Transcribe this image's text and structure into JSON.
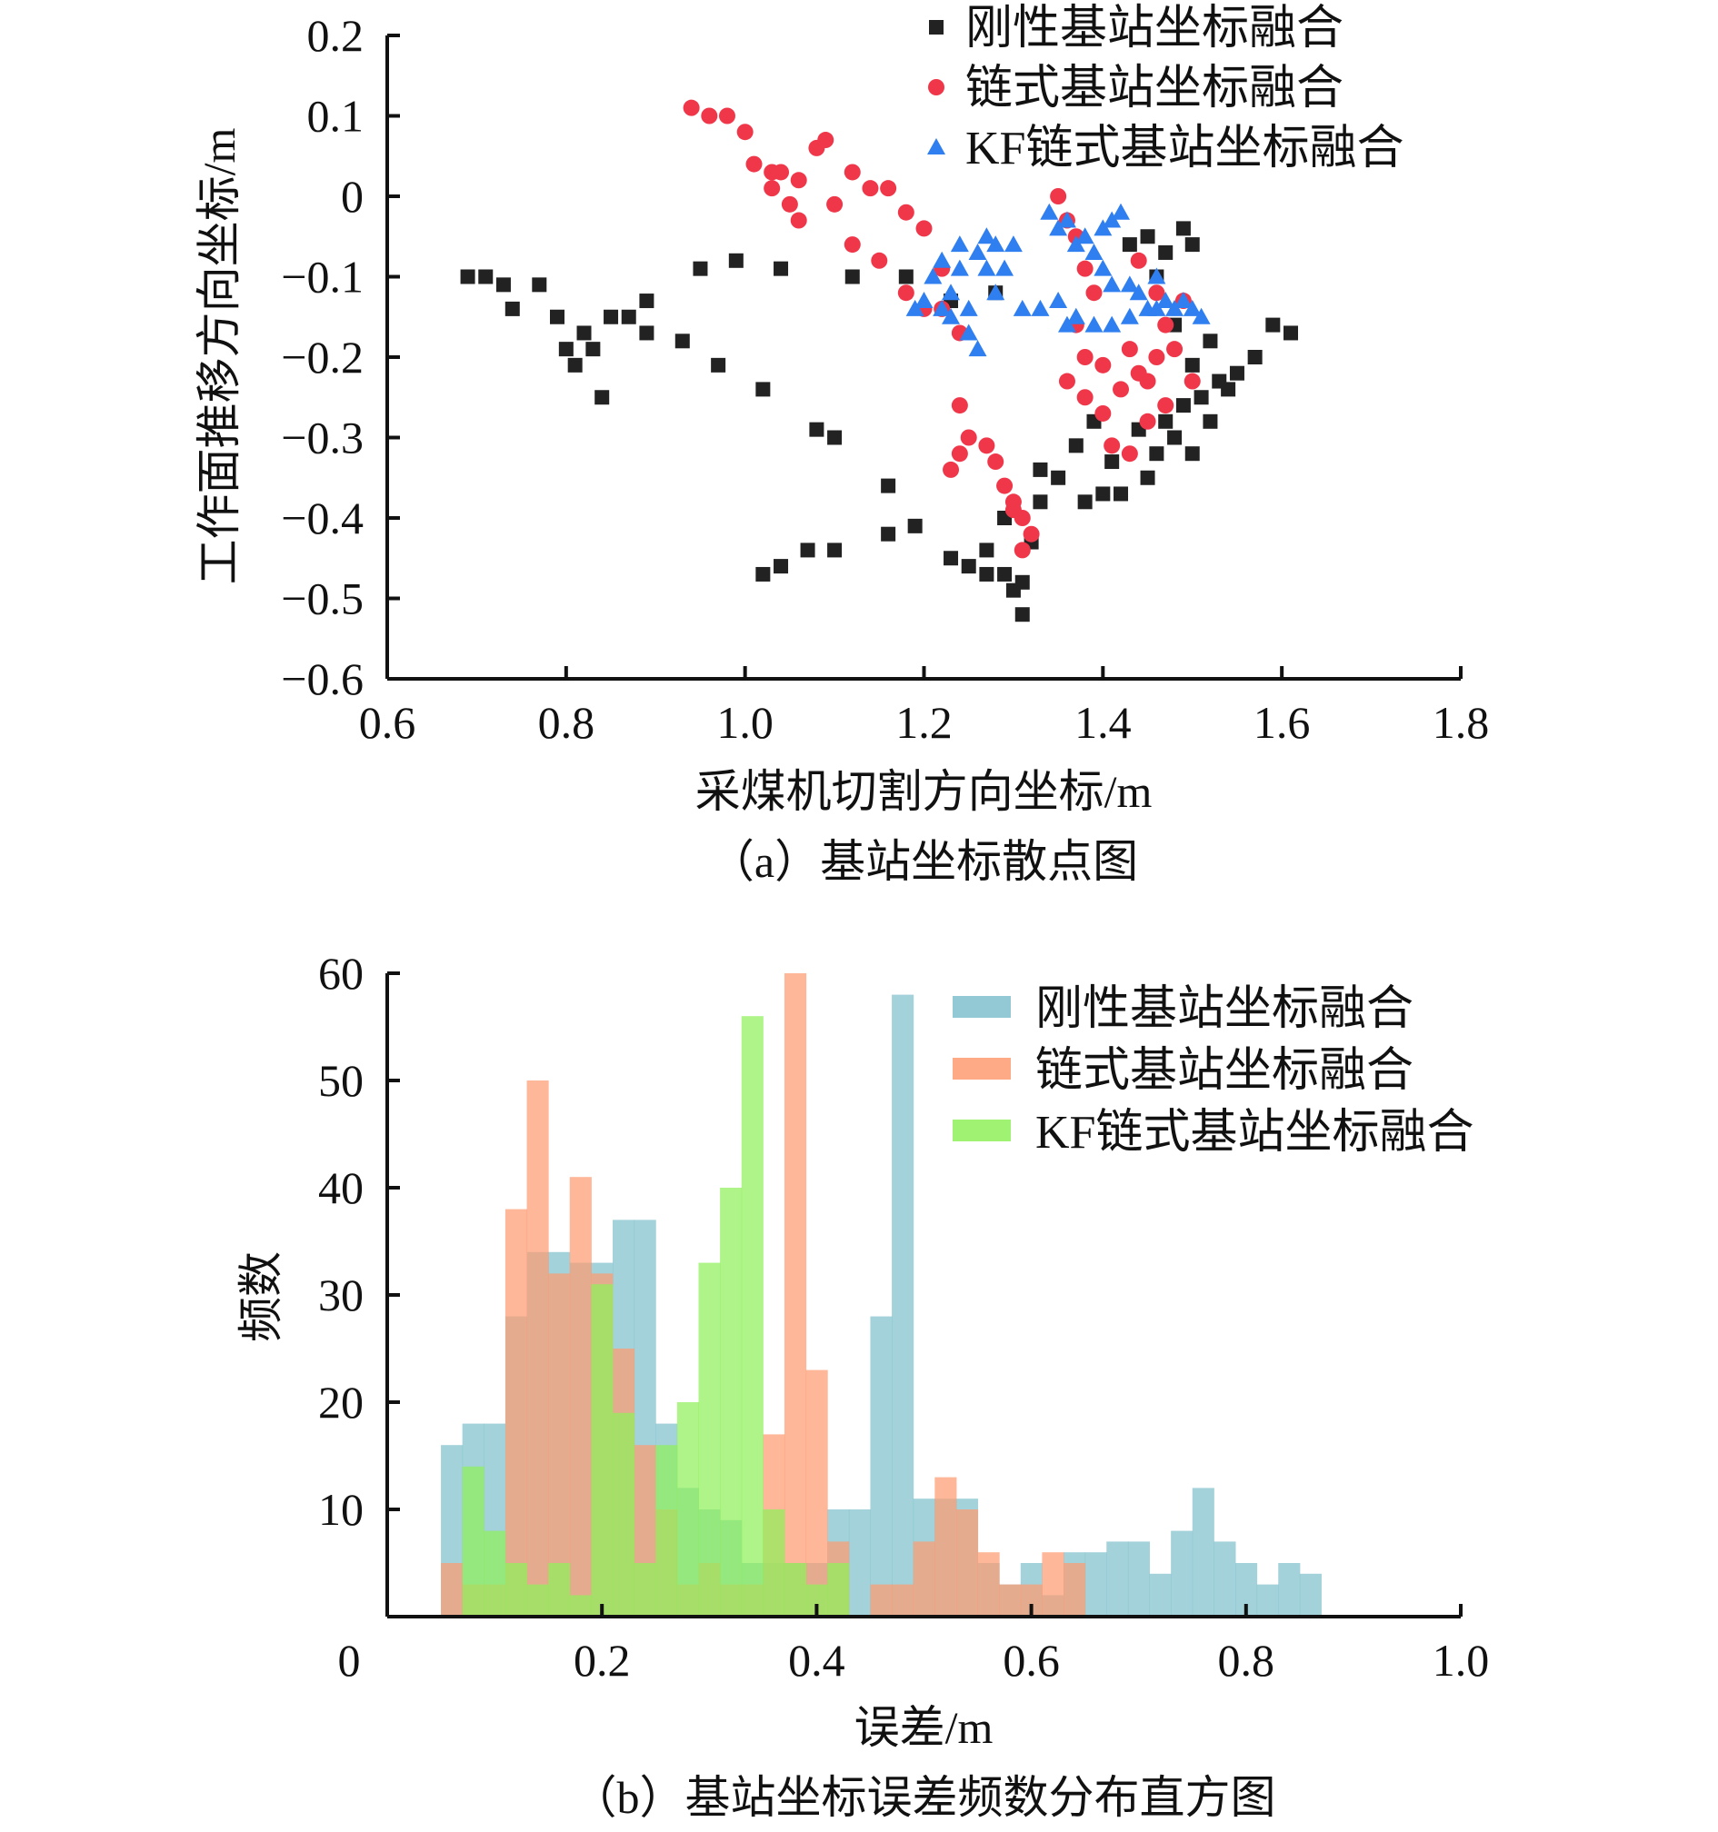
{
  "chart_data": [
    {
      "type": "scatter",
      "caption": "（a）基站坐标散点图",
      "xlabel": "采煤机切割方向坐标/m",
      "ylabel": "工作面推移方向坐标/m",
      "xlim": [
        0.6,
        1.8
      ],
      "ylim": [
        -0.6,
        0.2
      ],
      "xticks": [
        "0.6",
        "0.8",
        "1.0",
        "1.2",
        "1.4",
        "1.6",
        "1.8"
      ],
      "yticks": [
        "0.2",
        "0.1",
        "0",
        "−0.1",
        "−0.2",
        "−0.3",
        "−0.4",
        "−0.5",
        "−0.6"
      ],
      "legend_position": "top-right",
      "series": [
        {
          "name": "刚性基站坐标融合",
          "marker": "square",
          "color": "#222222",
          "points": [
            [
              0.69,
              -0.1
            ],
            [
              0.71,
              -0.1
            ],
            [
              0.73,
              -0.11
            ],
            [
              0.74,
              -0.14
            ],
            [
              0.77,
              -0.11
            ],
            [
              0.79,
              -0.15
            ],
            [
              0.8,
              -0.19
            ],
            [
              0.81,
              -0.21
            ],
            [
              0.82,
              -0.17
            ],
            [
              0.83,
              -0.19
            ],
            [
              0.84,
              -0.25
            ],
            [
              0.85,
              -0.15
            ],
            [
              0.87,
              -0.15
            ],
            [
              0.89,
              -0.13
            ],
            [
              0.89,
              -0.17
            ],
            [
              0.93,
              -0.18
            ],
            [
              0.95,
              -0.09
            ],
            [
              0.97,
              -0.21
            ],
            [
              0.99,
              -0.08
            ],
            [
              1.02,
              -0.24
            ],
            [
              1.04,
              -0.09
            ],
            [
              1.08,
              -0.29
            ],
            [
              1.1,
              -0.3
            ],
            [
              1.12,
              -0.1
            ],
            [
              1.16,
              -0.36
            ],
            [
              1.16,
              -0.42
            ],
            [
              1.18,
              -0.1
            ],
            [
              1.19,
              -0.41
            ],
            [
              1.02,
              -0.47
            ],
            [
              1.04,
              -0.46
            ],
            [
              1.07,
              -0.44
            ],
            [
              1.1,
              -0.44
            ],
            [
              1.23,
              -0.45
            ],
            [
              1.25,
              -0.46
            ],
            [
              1.27,
              -0.47
            ],
            [
              1.29,
              -0.47
            ],
            [
              1.3,
              -0.49
            ],
            [
              1.31,
              -0.52
            ],
            [
              1.31,
              -0.48
            ],
            [
              1.33,
              -0.38
            ],
            [
              1.35,
              -0.35
            ],
            [
              1.37,
              -0.31
            ],
            [
              1.39,
              -0.28
            ],
            [
              1.41,
              -0.33
            ],
            [
              1.42,
              -0.37
            ],
            [
              1.45,
              -0.35
            ],
            [
              1.46,
              -0.32
            ],
            [
              1.48,
              -0.3
            ],
            [
              1.49,
              -0.26
            ],
            [
              1.51,
              -0.25
            ],
            [
              1.53,
              -0.23
            ],
            [
              1.55,
              -0.22
            ],
            [
              1.57,
              -0.2
            ],
            [
              1.59,
              -0.16
            ],
            [
              1.61,
              -0.17
            ],
            [
              1.47,
              -0.07
            ],
            [
              1.45,
              -0.05
            ],
            [
              1.43,
              -0.06
            ],
            [
              1.49,
              -0.04
            ],
            [
              1.5,
              -0.06
            ],
            [
              1.52,
              -0.28
            ],
            [
              1.5,
              -0.32
            ],
            [
              1.44,
              -0.29
            ],
            [
              1.47,
              -0.28
            ],
            [
              1.38,
              -0.38
            ],
            [
              1.4,
              -0.37
            ],
            [
              1.33,
              -0.34
            ],
            [
              1.29,
              -0.4
            ],
            [
              1.32,
              -0.43
            ],
            [
              1.27,
              -0.44
            ],
            [
              1.23,
              -0.13
            ],
            [
              1.28,
              -0.12
            ],
            [
              1.54,
              -0.24
            ],
            [
              1.5,
              -0.21
            ],
            [
              1.52,
              -0.18
            ],
            [
              1.46,
              -0.1
            ],
            [
              1.48,
              -0.16
            ]
          ]
        },
        {
          "name": "链式基站坐标融合",
          "marker": "circle",
          "color": "#f0374a",
          "points": [
            [
              0.94,
              0.11
            ],
            [
              0.96,
              0.1
            ],
            [
              0.98,
              0.1
            ],
            [
              1.0,
              0.08
            ],
            [
              1.01,
              0.04
            ],
            [
              1.03,
              0.03
            ],
            [
              1.04,
              0.03
            ],
            [
              1.03,
              0.01
            ],
            [
              1.05,
              -0.01
            ],
            [
              1.06,
              -0.03
            ],
            [
              1.06,
              0.02
            ],
            [
              1.08,
              0.06
            ],
            [
              1.09,
              0.07
            ],
            [
              1.1,
              -0.01
            ],
            [
              1.12,
              0.03
            ],
            [
              1.14,
              0.01
            ],
            [
              1.16,
              0.01
            ],
            [
              1.12,
              -0.06
            ],
            [
              1.15,
              -0.08
            ],
            [
              1.18,
              -0.02
            ],
            [
              1.2,
              -0.04
            ],
            [
              1.22,
              -0.09
            ],
            [
              1.22,
              -0.14
            ],
            [
              1.24,
              -0.17
            ],
            [
              1.2,
              -0.14
            ],
            [
              1.18,
              -0.12
            ],
            [
              1.35,
              0.0
            ],
            [
              1.36,
              -0.03
            ],
            [
              1.37,
              -0.05
            ],
            [
              1.38,
              -0.09
            ],
            [
              1.39,
              -0.12
            ],
            [
              1.37,
              -0.16
            ],
            [
              1.38,
              -0.2
            ],
            [
              1.36,
              -0.23
            ],
            [
              1.38,
              -0.25
            ],
            [
              1.4,
              -0.27
            ],
            [
              1.42,
              -0.24
            ],
            [
              1.44,
              -0.22
            ],
            [
              1.46,
              -0.2
            ],
            [
              1.48,
              -0.19
            ],
            [
              1.5,
              -0.23
            ],
            [
              1.47,
              -0.26
            ],
            [
              1.43,
              -0.19
            ],
            [
              1.4,
              -0.21
            ],
            [
              1.45,
              -0.28
            ],
            [
              1.24,
              -0.26
            ],
            [
              1.24,
              -0.32
            ],
            [
              1.23,
              -0.34
            ],
            [
              1.25,
              -0.3
            ],
            [
              1.27,
              -0.31
            ],
            [
              1.28,
              -0.33
            ],
            [
              1.29,
              -0.36
            ],
            [
              1.3,
              -0.38
            ],
            [
              1.31,
              -0.4
            ],
            [
              1.32,
              -0.42
            ],
            [
              1.31,
              -0.44
            ],
            [
              1.3,
              -0.39
            ],
            [
              1.44,
              -0.08
            ],
            [
              1.46,
              -0.12
            ],
            [
              1.49,
              -0.13
            ],
            [
              1.47,
              -0.16
            ],
            [
              1.41,
              -0.31
            ],
            [
              1.43,
              -0.32
            ],
            [
              1.45,
              -0.23
            ]
          ]
        },
        {
          "name": "KF链式基站坐标融合",
          "marker": "triangle",
          "color": "#2f7ff0",
          "points": [
            [
              1.2,
              -0.13
            ],
            [
              1.21,
              -0.1
            ],
            [
              1.22,
              -0.08
            ],
            [
              1.23,
              -0.12
            ],
            [
              1.24,
              -0.09
            ],
            [
              1.24,
              -0.06
            ],
            [
              1.25,
              -0.14
            ],
            [
              1.25,
              -0.17
            ],
            [
              1.26,
              -0.19
            ],
            [
              1.26,
              -0.07
            ],
            [
              1.27,
              -0.09
            ],
            [
              1.28,
              -0.06
            ],
            [
              1.28,
              -0.12
            ],
            [
              1.29,
              -0.09
            ],
            [
              1.3,
              -0.06
            ],
            [
              1.22,
              -0.14
            ],
            [
              1.19,
              -0.14
            ],
            [
              1.23,
              -0.15
            ],
            [
              1.27,
              -0.05
            ],
            [
              1.31,
              -0.14
            ],
            [
              1.33,
              -0.14
            ],
            [
              1.35,
              -0.13
            ],
            [
              1.34,
              -0.02
            ],
            [
              1.35,
              -0.04
            ],
            [
              1.36,
              -0.03
            ],
            [
              1.37,
              -0.06
            ],
            [
              1.38,
              -0.05
            ],
            [
              1.39,
              -0.07
            ],
            [
              1.4,
              -0.04
            ],
            [
              1.41,
              -0.03
            ],
            [
              1.42,
              -0.02
            ],
            [
              1.4,
              -0.09
            ],
            [
              1.41,
              -0.11
            ],
            [
              1.43,
              -0.11
            ],
            [
              1.44,
              -0.12
            ],
            [
              1.45,
              -0.14
            ],
            [
              1.46,
              -0.1
            ],
            [
              1.47,
              -0.13
            ],
            [
              1.48,
              -0.14
            ],
            [
              1.49,
              -0.13
            ],
            [
              1.5,
              -0.14
            ],
            [
              1.51,
              -0.15
            ],
            [
              1.46,
              -0.14
            ],
            [
              1.43,
              -0.15
            ],
            [
              1.41,
              -0.16
            ],
            [
              1.39,
              -0.16
            ],
            [
              1.37,
              -0.15
            ],
            [
              1.36,
              -0.16
            ]
          ]
        }
      ]
    },
    {
      "type": "bar",
      "subtype": "histogram",
      "caption": "（b）基站坐标误差频数分布直方图",
      "xlabel": "误差/m",
      "ylabel": "频数",
      "xlim": [
        0,
        1.0
      ],
      "ylim": [
        0,
        60
      ],
      "xticks": [
        "0",
        "0.2",
        "0.4",
        "0.6",
        "0.8",
        "1.0"
      ],
      "yticks": [
        "60",
        "50",
        "40",
        "30",
        "20",
        "10"
      ],
      "bin_width": 0.02,
      "legend_position": "top-right",
      "series": [
        {
          "name": "刚性基站坐标融合",
          "color": "#7fc0cc",
          "start": 0.05,
          "counts": [
            16,
            18,
            18,
            28,
            34,
            34,
            33,
            33,
            37,
            37,
            18,
            12,
            10,
            9,
            5,
            5,
            5,
            5,
            10,
            10,
            28,
            58,
            11,
            11,
            11,
            5,
            3,
            5,
            2,
            6,
            6,
            7,
            7,
            4,
            8,
            12,
            7,
            5,
            3,
            5,
            4
          ]
        },
        {
          "name": "链式基站坐标融合",
          "color": "#ff9b72",
          "start": 0.05,
          "counts": [
            5,
            3,
            3,
            38,
            50,
            32,
            41,
            32,
            25,
            16,
            10,
            3,
            5,
            3,
            3,
            17,
            60,
            23,
            7,
            0,
            3,
            3,
            7,
            13,
            10,
            6,
            3,
            3,
            6,
            5
          ]
        },
        {
          "name": "KF链式基站坐标融合",
          "color": "#8ff05a",
          "start": 0.07,
          "counts": [
            14,
            8,
            5,
            3,
            5,
            2,
            31,
            19,
            5,
            16,
            20,
            33,
            40,
            56,
            10,
            5,
            3,
            5
          ]
        }
      ]
    }
  ]
}
